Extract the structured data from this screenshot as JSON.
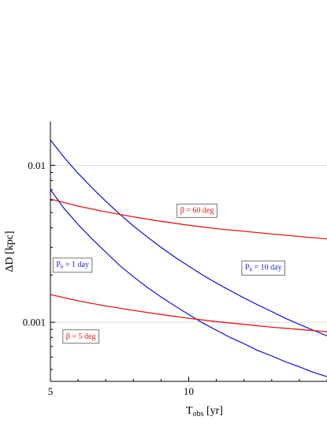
{
  "chart_data": {
    "type": "line",
    "title": "",
    "xlabel": "T_obs [yr]",
    "ylabel": "ΔD [kpc]",
    "xscale": "linear",
    "yscale": "log",
    "xlim": [
      5,
      15
    ],
    "ylim": [
      0.00042,
      0.019
    ],
    "x_ticks": [
      5,
      10
    ],
    "y_ticks": [
      0.01,
      0.001
    ],
    "y_tick_labels": [
      "0.01",
      "0.001"
    ],
    "grid": true,
    "colors": {
      "pb_series": "#1f1fdd",
      "beta_series": "#e11a1a"
    },
    "series": [
      {
        "name": "P_b = 1 day",
        "color": "#1f1fdd",
        "x": [
          5,
          5.5,
          6,
          6.5,
          7,
          7.5,
          8,
          8.5,
          9,
          9.5,
          10,
          10.5,
          11,
          11.5,
          12,
          12.5,
          13,
          13.5,
          14,
          14.5,
          15
        ],
        "y": [
          0.007,
          0.0053,
          0.0042,
          0.0034,
          0.0028,
          0.0023,
          0.00195,
          0.00167,
          0.00145,
          0.00127,
          0.00112,
          0.00099,
          0.00089,
          0.0008,
          0.00073,
          0.00066,
          0.00061,
          0.00056,
          0.00052,
          0.00048,
          0.00045
        ]
      },
      {
        "name": "P_b = 10 day",
        "color": "#1f1fdd",
        "x": [
          5,
          5.5,
          6,
          6.5,
          7,
          7.5,
          8,
          8.5,
          9,
          9.5,
          10,
          10.5,
          11,
          11.5,
          12,
          12.5,
          13,
          13.5,
          14,
          14.5,
          15
        ],
        "y": [
          0.0145,
          0.0112,
          0.0089,
          0.0072,
          0.0059,
          0.0049,
          0.0041,
          0.0035,
          0.003,
          0.0026,
          0.00228,
          0.002,
          0.00178,
          0.00159,
          0.00143,
          0.00129,
          0.00117,
          0.00106,
          0.00097,
          0.00089,
          0.00082
        ]
      },
      {
        "name": "β = 60 deg",
        "color": "#e11a1a",
        "x": [
          5,
          6,
          7,
          8,
          9,
          10,
          11,
          12,
          13,
          14,
          15
        ],
        "y": [
          0.0061,
          0.0055,
          0.00505,
          0.0047,
          0.0044,
          0.00415,
          0.00395,
          0.0038,
          0.00365,
          0.00352,
          0.0034
        ]
      },
      {
        "name": "β = 5 deg",
        "color": "#e11a1a",
        "x": [
          5,
          6,
          7,
          8,
          9,
          10,
          11,
          12,
          13,
          14,
          15
        ],
        "y": [
          0.0015,
          0.00137,
          0.00127,
          0.00119,
          0.00112,
          0.00106,
          0.00101,
          0.00097,
          0.00093,
          0.0009,
          0.00087
        ]
      }
    ],
    "annotations": [
      {
        "text_main": "P",
        "text_sub": "b",
        "text_rest": " = 1 day",
        "color": "#1f1fdd",
        "x": 5.8,
        "y": 0.00235
      },
      {
        "text_main": "P",
        "text_sub": "b",
        "text_rest": " = 10 day",
        "color": "#1f1fdd",
        "x": 12.7,
        "y": 0.00225
      },
      {
        "text_main": "β = 60 deg",
        "text_sub": "",
        "text_rest": "",
        "color": "#e11a1a",
        "x": 10.3,
        "y": 0.0052
      },
      {
        "text_main": "β = 5 deg",
        "text_sub": "",
        "text_rest": "",
        "color": "#e11a1a",
        "x": 6.1,
        "y": 0.00082
      }
    ],
    "axis_label_parts": {
      "x_main": "T",
      "x_sub": "obs",
      "x_rest": " [yr]",
      "y_text": "ΔD [kpc]"
    }
  }
}
